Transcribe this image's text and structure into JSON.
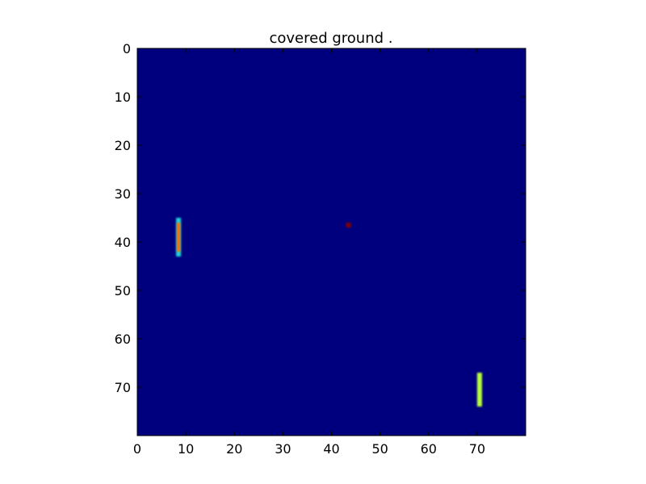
{
  "chart_data": {
    "type": "heatmap",
    "title": "covered ground .",
    "xlabel": "",
    "ylabel": "",
    "xlim": [
      0,
      80
    ],
    "ylim": [
      80,
      0
    ],
    "x_ticks": [
      0,
      10,
      20,
      30,
      40,
      50,
      60,
      70
    ],
    "y_ticks": [
      0,
      10,
      20,
      30,
      40,
      50,
      60,
      70
    ],
    "colormap": "jet",
    "background_value": 0.0,
    "background_color": "#00007f",
    "regions": [
      {
        "name": "orange-bar",
        "x": [
          8,
          9
        ],
        "y": [
          35,
          43
        ],
        "value": 0.8,
        "color": "#ff6a00",
        "edge_color": "#1fd6d6"
      },
      {
        "name": "red-square",
        "x": [
          43,
          44
        ],
        "y": [
          36,
          37
        ],
        "value": 1.0,
        "color": "#7f0000"
      },
      {
        "name": "yellow-green-bar",
        "x": [
          70,
          71
        ],
        "y": [
          67,
          74
        ],
        "value": 0.6,
        "color": "#b8ff3a"
      }
    ]
  }
}
